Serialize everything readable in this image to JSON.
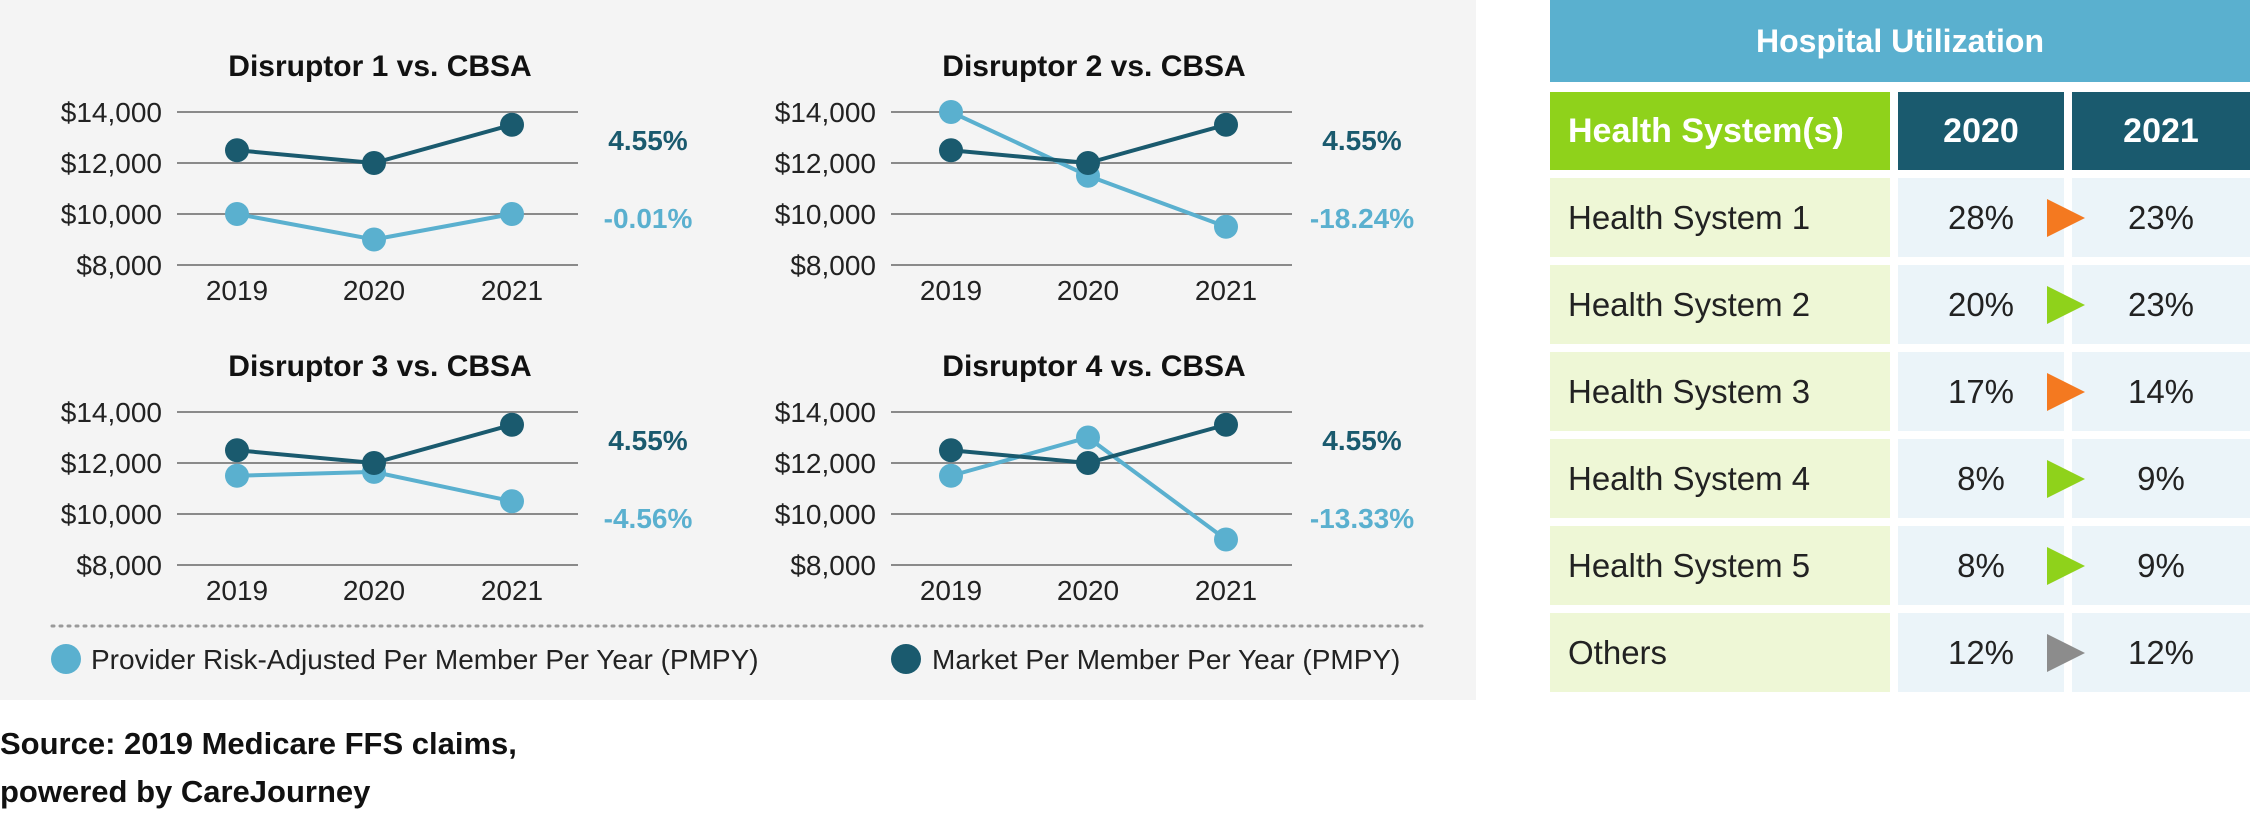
{
  "chart_data": [
    {
      "type": "line",
      "title": "Disruptor 1 vs. CBSA",
      "categories": [
        "2019",
        "2020",
        "2021"
      ],
      "yticks": [
        "$14,000",
        "$12,000",
        "$10,000",
        "$8,000"
      ],
      "ylim": [
        8000,
        14000
      ],
      "series": [
        {
          "name": "Market Per Member Per Year (PMPY)",
          "values": [
            12500,
            12000,
            13500
          ],
          "change": "4.55%"
        },
        {
          "name": "Provider Risk-Adjusted Per Member Per Year (PMPY)",
          "values": [
            10000,
            9000,
            10000
          ],
          "change": "-0.01%"
        }
      ]
    },
    {
      "type": "line",
      "title": "Disruptor 2 vs. CBSA",
      "categories": [
        "2019",
        "2020",
        "2021"
      ],
      "yticks": [
        "$14,000",
        "$12,000",
        "$10,000",
        "$8,000"
      ],
      "ylim": [
        8000,
        14000
      ],
      "series": [
        {
          "name": "Market Per Member Per Year (PMPY)",
          "values": [
            12500,
            12000,
            13500
          ],
          "change": "4.55%"
        },
        {
          "name": "Provider Risk-Adjusted Per Member Per Year (PMPY)",
          "values": [
            14000,
            11500,
            9500
          ],
          "change": "-18.24%"
        }
      ]
    },
    {
      "type": "line",
      "title": "Disruptor 3 vs. CBSA",
      "categories": [
        "2019",
        "2020",
        "2021"
      ],
      "yticks": [
        "$14,000",
        "$12,000",
        "$10,000",
        "$8,000"
      ],
      "ylim": [
        8000,
        14000
      ],
      "series": [
        {
          "name": "Market Per Member Per Year (PMPY)",
          "values": [
            12500,
            12000,
            13500
          ],
          "change": "4.55%"
        },
        {
          "name": "Provider Risk-Adjusted Per Member Per Year (PMPY)",
          "values": [
            11500,
            11650,
            10500
          ],
          "change": "-4.56%"
        }
      ]
    },
    {
      "type": "line",
      "title": "Disruptor 4 vs. CBSA",
      "categories": [
        "2019",
        "2020",
        "2021"
      ],
      "yticks": [
        "$14,000",
        "$12,000",
        "$10,000",
        "$8,000"
      ],
      "ylim": [
        8000,
        14000
      ],
      "series": [
        {
          "name": "Market Per Member Per Year (PMPY)",
          "values": [
            12500,
            12000,
            13500
          ],
          "change": "4.55%"
        },
        {
          "name": "Provider Risk-Adjusted Per Member Per Year (PMPY)",
          "values": [
            11500,
            13000,
            9000
          ],
          "change": "-13.33%"
        }
      ]
    },
    {
      "type": "table",
      "title": "Hospital Utilization",
      "columns": [
        "Health System(s)",
        "2020",
        "2021"
      ],
      "rows": [
        {
          "name": "Health System 1",
          "v2020": "28%",
          "v2021": "23%",
          "trend": "down"
        },
        {
          "name": "Health System 2",
          "v2020": "20%",
          "v2021": "23%",
          "trend": "up"
        },
        {
          "name": "Health System 3",
          "v2020": "17%",
          "v2021": "14%",
          "trend": "down"
        },
        {
          "name": "Health System 4",
          "v2020": "8%",
          "v2021": "9%",
          "trend": "up"
        },
        {
          "name": "Health System 5",
          "v2020": "8%",
          "v2021": "9%",
          "trend": "up"
        },
        {
          "name": "Others",
          "v2020": "12%",
          "v2021": "12%",
          "trend": "flat"
        }
      ]
    }
  ],
  "legend": {
    "provider": "Provider Risk-Adjusted Per Member Per Year (PMPY)",
    "market": "Market Per Member Per Year (PMPY)"
  },
  "colors": {
    "market": "#1a5a6e",
    "provider": "#5ab0cf",
    "up": "#8fd21b",
    "down": "#f47920",
    "flat": "#8c8c8c"
  },
  "source": {
    "line1": "Source: 2019 Medicare FFS claims,",
    "line2": "powered by CareJourney"
  }
}
